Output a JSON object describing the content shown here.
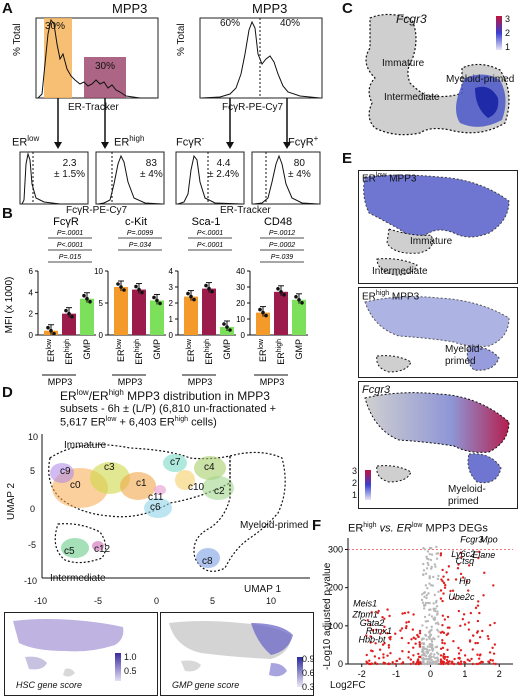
{
  "panels": {
    "A": "A",
    "B": "B",
    "C": "C",
    "D": "D",
    "E": "E",
    "F": "F"
  },
  "panelA": {
    "left_title": "MPP3",
    "right_title": "MPP3",
    "pct_total": "% Total",
    "left_hist": {
      "pct_low": "30%",
      "pct_high": "30%",
      "xlabel": "ER-Tracker"
    },
    "right_hist": {
      "pct_left": "60%",
      "pct_right": "40%",
      "xlabel": "FcγR-PE-Cy7"
    },
    "er_low": "ER",
    "er_low_sup": "low",
    "er_high": "ER",
    "er_high_sup": "high",
    "fc_neg": "FcγR",
    "fc_neg_sup": "-",
    "fc_pos": "FcγR",
    "fc_pos_sup": "+",
    "sub1": {
      "value": "2.3",
      "err": "± 1.5%"
    },
    "sub2": {
      "value": "83",
      "err": "± 4%"
    },
    "sub3": {
      "value": "4.4",
      "err": "± 2.4%"
    },
    "sub4": {
      "value": "80",
      "err": "± 4%"
    },
    "sub_xlabel_left": "FcγR-PE-Cy7",
    "sub_xlabel_right": "ER-Tracker"
  },
  "panelB": {
    "ylabel": "MFI (x 1000)",
    "group_label": "MPP3",
    "colors": {
      "er_low": "#f39a2a",
      "er_high": "#9b1b4a",
      "gmp": "#7de05a"
    },
    "charts": [
      {
        "title": "FcγR",
        "ylim": [
          0,
          6
        ],
        "yticks": [
          "0",
          "2",
          "4",
          "6"
        ],
        "values": [
          0.4,
          2.0,
          3.4
        ],
        "pvals": [
          "P=.0001",
          "P<.0001",
          "P=.015"
        ]
      },
      {
        "title": "c-Kit",
        "ylim": [
          0,
          10
        ],
        "yticks": [
          "0",
          "5",
          "10"
        ],
        "values": [
          7.5,
          7.1,
          5.4
        ],
        "pvals": [
          "P=.0099",
          "P=.034"
        ]
      },
      {
        "title": "Sca-1",
        "ylim": [
          0,
          4
        ],
        "yticks": [
          "0",
          "1",
          "2",
          "3",
          "4"
        ],
        "values": [
          2.4,
          2.9,
          0.5
        ],
        "pvals": [
          "P<.0001",
          "P<.0001"
        ]
      },
      {
        "title": "CD48",
        "ylim": [
          0,
          40
        ],
        "yticks": [
          "0",
          "10",
          "20",
          "30",
          "40"
        ],
        "values": [
          14,
          27,
          22
        ],
        "pvals": [
          "P=.0012",
          "P=.0002",
          "P=.039"
        ]
      }
    ],
    "cats": {
      "er": "ER",
      "low": "low",
      "high": "high",
      "gmp": "GMP"
    }
  },
  "panelC": {
    "gene": "Fcgr3",
    "immature": "Immature",
    "intermediate": "Intermediate",
    "myeloid": "Myeloid-primed",
    "scale": [
      "3",
      "2",
      "1"
    ]
  },
  "panelD": {
    "title_er": "ER",
    "title_low": "low",
    "title_slash": "/ER",
    "title_high": "high",
    "title_rest": " MPP3 distribution in MPP3",
    "subtitle1": "subsets - 6h ± (L/P) (6,810 un-fractionated +",
    "subtitle2a": "5,617 ER",
    "subtitle2b": "low",
    "subtitle2c": " + 6,403 ER",
    "subtitle2d": "high",
    "subtitle2e": " cells)",
    "immature": "Immature",
    "intermediate": "Intermediate",
    "myeloid": "Myeloid-primed",
    "clusters": [
      "c0",
      "c1",
      "c2",
      "c3",
      "c4",
      "c5",
      "c6",
      "c7",
      "c8",
      "c9",
      "c10",
      "c11",
      "c12"
    ],
    "xlabel": "UMAP 1",
    "ylabel": "UMAP 2",
    "xticks": [
      "-10",
      "-5",
      "0",
      "5",
      "10"
    ],
    "yticks": [
      "10",
      "5",
      "0",
      "-5",
      "-10"
    ],
    "hsc_label": "HSC gene score",
    "gmp_label": "GMP gene score",
    "hsc_scale": [
      "1.0",
      "0.5"
    ],
    "gmp_scale": [
      "0.9",
      "0.6",
      "0.3"
    ]
  },
  "panelE": {
    "p1_er": "ER",
    "p1_sup": "low",
    "p1_rest": " MPP3",
    "p2_er": "ER",
    "p2_sup": "high",
    "p2_rest": " MPP3",
    "p3_gene": "Fcgr3",
    "immature": "Immature",
    "intermediate": "Intermediate",
    "myeloid1": "Myeloid-",
    "myeloid2": "primed",
    "scale": [
      "3",
      "2",
      "1"
    ]
  },
  "panelF": {
    "title_er1": "ER",
    "title_high": "high",
    "title_vs": " vs. ER",
    "title_low": "low",
    "title_rest": " MPP3 DEGs",
    "ylabel": "-Log10 adjusted p-value",
    "xlabel": "Log2FC",
    "xticks": [
      "-2",
      "-1",
      "0",
      "1",
      "2"
    ],
    "yticks": [
      "0",
      "100",
      "200",
      "300"
    ],
    "genes_right": [
      "Fcgr3",
      "Mpo",
      "Ly6c2",
      "Elane",
      "Ctsq",
      "Hp",
      "Ube2c"
    ],
    "genes_left": [
      "Meis1",
      "Zfpm1",
      "Gata2",
      "Runx1",
      "Hbb-bt"
    ]
  }
}
